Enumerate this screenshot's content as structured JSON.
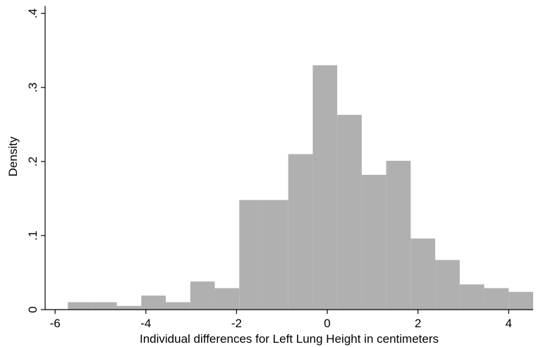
{
  "chart_data": {
    "type": "histogram",
    "x_label": "Individual differences for Left Lung Height in centimeters",
    "y_label": "Density",
    "bins": [
      -5.72,
      -5.18,
      -4.64,
      -4.1,
      -3.56,
      -3.02,
      -2.48,
      -1.94,
      -1.4,
      -0.86,
      -0.32,
      0.22,
      0.76,
      1.3,
      1.84,
      2.38,
      2.92,
      3.46,
      4.0,
      4.54
    ],
    "values": [
      0.01,
      0.01,
      0.005,
      0.019,
      0.01,
      0.038,
      0.029,
      0.148,
      0.148,
      0.21,
      0.33,
      0.263,
      0.182,
      0.201,
      0.096,
      0.067,
      0.034,
      0.029,
      0.024
    ],
    "color": "#b0b0b0",
    "xlim": [
      -6.22,
      4.54
    ],
    "xticks": [
      -6,
      -4,
      -2,
      0,
      2,
      4
    ],
    "ylim": [
      0,
      0.41
    ],
    "yticks": [
      0,
      {
        "value": 0.1,
        "label": ".1"
      },
      {
        "value": 0.2,
        "label": ".2"
      },
      {
        "value": 0.3,
        "label": ".3"
      },
      {
        "value": 0.4,
        "label": ".4"
      }
    ],
    "grid": false
  }
}
